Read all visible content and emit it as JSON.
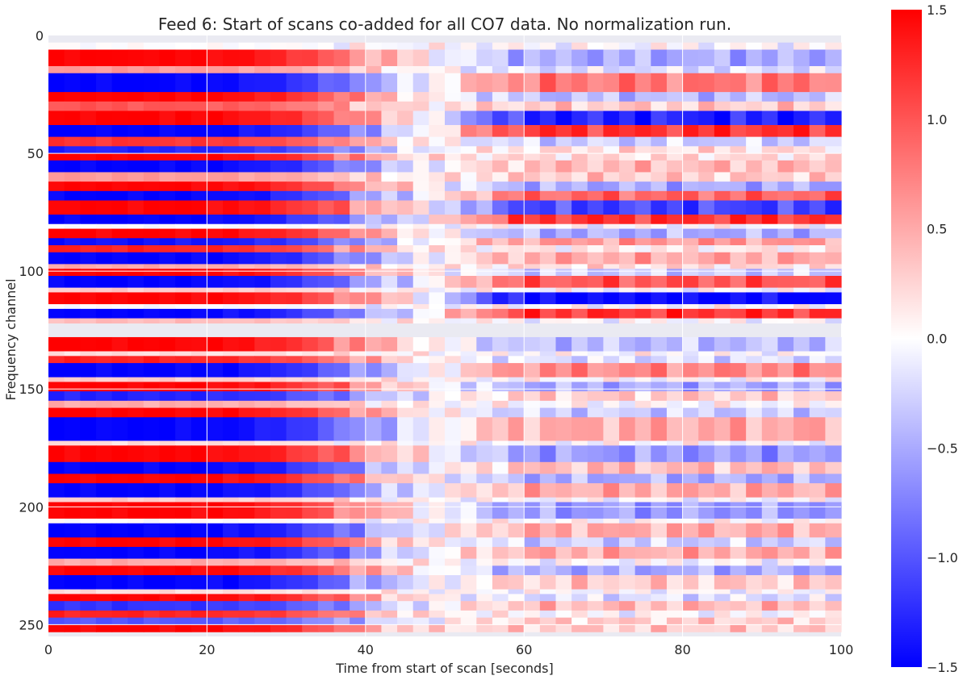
{
  "chart_data": {
    "type": "heatmap",
    "title": "Feed 6: Start of scans co-added for all CO7 data. No normalization run.",
    "xlabel": "Time from start of scan [seconds]",
    "ylabel": "Frequency channel",
    "xlim": [
      0,
      100
    ],
    "ylim": [
      255,
      0
    ],
    "xticks": [
      0,
      20,
      40,
      60,
      80,
      100
    ],
    "yticks": [
      0,
      50,
      100,
      150,
      200,
      250
    ],
    "colorbar": {
      "cmap": "bwr",
      "vmin": -1.5,
      "vmax": 1.5,
      "ticks": [
        -1.5,
        -1.0,
        -0.5,
        0.0,
        0.5,
        1.0,
        1.5
      ],
      "tick_labels": [
        "−1.5",
        "−1.0",
        "−0.5",
        "0.0",
        "0.5",
        "1.0",
        "1.5"
      ]
    },
    "masked_channel_ranges": [
      [
        0,
        3
      ],
      [
        122,
        128
      ],
      [
        253,
        255
      ]
    ],
    "bands": [
      {
        "start": 3,
        "end": 6,
        "early": 0.0,
        "late": 0.0
      },
      {
        "start": 6,
        "end": 13,
        "early": 1.5,
        "late": -0.5
      },
      {
        "start": 13,
        "end": 16,
        "early": 0.6,
        "late": -0.2
      },
      {
        "start": 16,
        "end": 24,
        "early": -1.5,
        "late": 0.8
      },
      {
        "start": 24,
        "end": 28,
        "early": 1.5,
        "late": -0.4
      },
      {
        "start": 28,
        "end": 32,
        "early": 1.0,
        "late": 0.3
      },
      {
        "start": 32,
        "end": 38,
        "early": 1.5,
        "late": -1.3
      },
      {
        "start": 38,
        "end": 43,
        "early": -1.5,
        "late": 1.2
      },
      {
        "start": 43,
        "end": 47,
        "early": 1.2,
        "late": -0.3
      },
      {
        "start": 47,
        "end": 50,
        "early": -1.3,
        "late": 0.2
      },
      {
        "start": 50,
        "end": 53,
        "early": 1.5,
        "late": 0.2
      },
      {
        "start": 53,
        "end": 58,
        "early": -1.5,
        "late": 0.4
      },
      {
        "start": 58,
        "end": 62,
        "early": 0.6,
        "late": 0.3
      },
      {
        "start": 62,
        "end": 66,
        "early": 1.5,
        "late": -0.5
      },
      {
        "start": 66,
        "end": 70,
        "early": -1.5,
        "late": 0.9
      },
      {
        "start": 70,
        "end": 76,
        "early": 1.5,
        "late": -1.1
      },
      {
        "start": 76,
        "end": 80,
        "early": -1.5,
        "late": 1.2
      },
      {
        "start": 80,
        "end": 82,
        "early": 0.0,
        "late": 0.0
      },
      {
        "start": 82,
        "end": 86,
        "early": 1.5,
        "late": -0.5
      },
      {
        "start": 86,
        "end": 89,
        "early": -1.4,
        "late": 0.6
      },
      {
        "start": 89,
        "end": 92,
        "early": 1.3,
        "late": 0.1
      },
      {
        "start": 92,
        "end": 97,
        "early": -1.5,
        "late": 0.5
      },
      {
        "start": 97,
        "end": 99,
        "early": 0.5,
        "late": 0.2
      },
      {
        "start": 99,
        "end": 102,
        "early": 1.5,
        "late": -0.3
      },
      {
        "start": 102,
        "end": 107,
        "early": -1.5,
        "late": 1.0
      },
      {
        "start": 107,
        "end": 109,
        "early": 0.3,
        "late": 0.0
      },
      {
        "start": 109,
        "end": 114,
        "early": 1.5,
        "late": -1.5
      },
      {
        "start": 114,
        "end": 116,
        "early": 0.0,
        "late": 0.0
      },
      {
        "start": 116,
        "end": 120,
        "early": -1.5,
        "late": 1.2
      },
      {
        "start": 120,
        "end": 122,
        "early": 0.4,
        "late": 0.0
      },
      {
        "start": 128,
        "end": 134,
        "early": 1.5,
        "late": -0.4
      },
      {
        "start": 134,
        "end": 136,
        "early": 0.2,
        "late": 0.0
      },
      {
        "start": 136,
        "end": 139,
        "early": 1.3,
        "late": -0.2
      },
      {
        "start": 139,
        "end": 145,
        "early": -1.5,
        "late": 0.7
      },
      {
        "start": 145,
        "end": 147,
        "early": 0.3,
        "late": 0.0
      },
      {
        "start": 147,
        "end": 151,
        "early": 1.5,
        "late": -0.5
      },
      {
        "start": 151,
        "end": 155,
        "early": -1.3,
        "late": 0.3
      },
      {
        "start": 155,
        "end": 158,
        "early": 0.5,
        "late": 0.0
      },
      {
        "start": 158,
        "end": 162,
        "early": 1.5,
        "late": -0.3
      },
      {
        "start": 162,
        "end": 172,
        "early": -1.5,
        "late": 0.5
      },
      {
        "start": 172,
        "end": 174,
        "early": 0.2,
        "late": 0.0
      },
      {
        "start": 174,
        "end": 181,
        "early": 1.5,
        "late": -0.6
      },
      {
        "start": 181,
        "end": 186,
        "early": -1.5,
        "late": 0.4
      },
      {
        "start": 186,
        "end": 190,
        "early": 1.5,
        "late": -0.5
      },
      {
        "start": 190,
        "end": 196,
        "early": -1.5,
        "late": 0.5
      },
      {
        "start": 196,
        "end": 198,
        "early": 0.3,
        "late": 0.0
      },
      {
        "start": 198,
        "end": 205,
        "early": 1.5,
        "late": -0.6
      },
      {
        "start": 205,
        "end": 207,
        "early": 0.0,
        "late": 0.0
      },
      {
        "start": 207,
        "end": 213,
        "early": -1.5,
        "late": 0.5
      },
      {
        "start": 213,
        "end": 217,
        "early": 1.5,
        "late": -0.3
      },
      {
        "start": 217,
        "end": 222,
        "early": -1.5,
        "late": 0.5
      },
      {
        "start": 222,
        "end": 225,
        "early": 0.5,
        "late": 0.0
      },
      {
        "start": 225,
        "end": 229,
        "early": 1.5,
        "late": -0.5
      },
      {
        "start": 229,
        "end": 235,
        "early": -1.5,
        "late": 0.3
      },
      {
        "start": 235,
        "end": 237,
        "early": 0.2,
        "late": 0.0
      },
      {
        "start": 237,
        "end": 240,
        "early": 1.5,
        "late": -0.2
      },
      {
        "start": 240,
        "end": 244,
        "early": -1.2,
        "late": 0.4
      },
      {
        "start": 244,
        "end": 247,
        "early": 1.3,
        "late": 0.0
      },
      {
        "start": 247,
        "end": 250,
        "early": -1.0,
        "late": 0.3
      },
      {
        "start": 250,
        "end": 253,
        "early": 1.5,
        "late": 0.3
      }
    ]
  }
}
